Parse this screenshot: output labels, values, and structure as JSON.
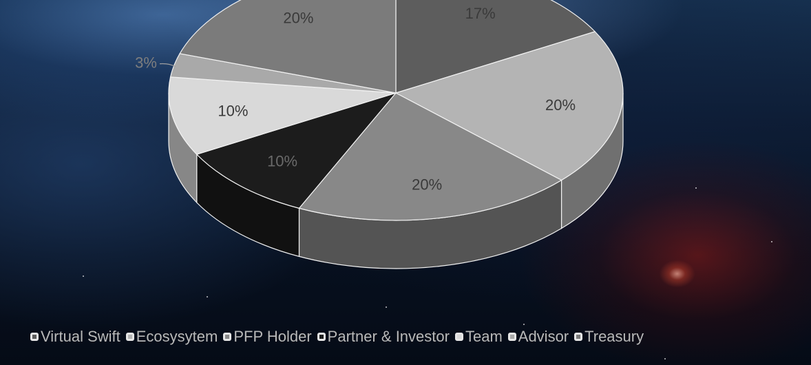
{
  "chart_data": {
    "type": "pie",
    "style": "3d",
    "title": "",
    "categories": [
      "Virtual Swift",
      "Ecosysytem",
      "PFP Holder",
      "Partner & Investor",
      "Team",
      "Advisor",
      "Treasury"
    ],
    "values": [
      17,
      20,
      20,
      10,
      10,
      3,
      20
    ],
    "value_labels": [
      "17%",
      "20%",
      "20%",
      "10%",
      "10%",
      "3%",
      "20%"
    ],
    "colors": [
      "#5d5d5d",
      "#b4b4b4",
      "#888888",
      "#1c1c1c",
      "#d9d9d9",
      "#a9a9a9",
      "#7b7b7b"
    ],
    "legend_position": "bottom",
    "legend": [
      {
        "label": "Virtual Swift",
        "color": "#5d5d5d"
      },
      {
        "label": "Ecosysytem",
        "color": "#b4b4b4"
      },
      {
        "label": "PFP Holder",
        "color": "#888888"
      },
      {
        "label": "Partner & Investor",
        "color": "#1c1c1c"
      },
      {
        "label": "Team",
        "color": "#d9d9d9"
      },
      {
        "label": "Advisor",
        "color": "#a9a9a9"
      },
      {
        "label": "Treasury",
        "color": "#7b7b7b"
      }
    ]
  }
}
